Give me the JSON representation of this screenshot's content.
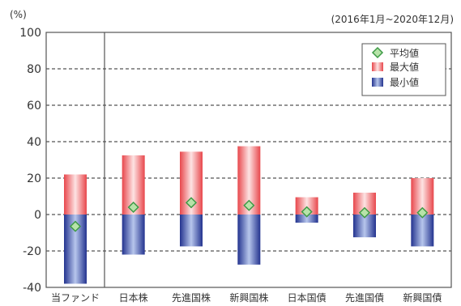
{
  "chart_data": {
    "type": "bar",
    "unit_label": "(%)",
    "period": "(2016年1月~2020年12月)",
    "categories": [
      "当ファンド",
      "日本株",
      "先進国株",
      "新興国株",
      "日本国債",
      "先進国債",
      "新興国債"
    ],
    "series": [
      {
        "name": "最大値",
        "values": [
          22,
          32.5,
          34.5,
          37.5,
          9.5,
          12,
          20
        ]
      },
      {
        "name": "最小値",
        "values": [
          -38,
          -22,
          -17.5,
          -27.5,
          -4.5,
          -12.5,
          -17.5
        ]
      },
      {
        "name": "平均値",
        "values": [
          -6.5,
          4,
          6.5,
          5,
          1.5,
          1,
          1
        ]
      }
    ],
    "ylim": [
      -40,
      100
    ],
    "yticks": [
      -40,
      -20,
      0,
      20,
      40,
      60,
      80,
      100
    ],
    "grid": true,
    "legend_position": "top-right",
    "colors": {
      "max_edge": "#e8474c",
      "max_center": "#fde3e3",
      "min_edge": "#23338f",
      "min_center": "#b7c6ec",
      "avg_fill": "#b7e3a9",
      "avg_stroke": "#3d9a46",
      "grid": "#555555",
      "axis": "#555555"
    }
  }
}
